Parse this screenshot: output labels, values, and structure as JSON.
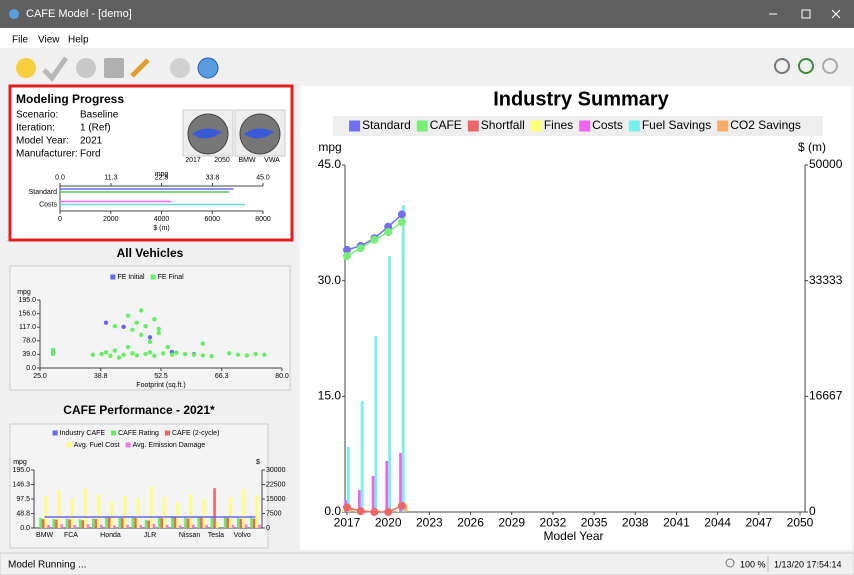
{
  "window": {
    "title": "CAFE Model - [demo]"
  },
  "menu": [
    "File",
    "View",
    "Help"
  ],
  "progress": {
    "title": "Modeling Progress",
    "rows": [
      [
        "Scenario:",
        "Baseline"
      ],
      [
        "Iteration:",
        "1 (Ref)"
      ],
      [
        "Model Year:",
        "2021"
      ],
      [
        "Manufacturer:",
        "Ford"
      ]
    ],
    "gauges": [
      [
        "2017",
        "2050"
      ],
      [
        "BMW",
        "VWA"
      ]
    ]
  },
  "status": {
    "message": "Model Running ...",
    "zoom": "100 %",
    "time": "1/13/20 17:54:14"
  },
  "chart_data": [
    {
      "type": "bar",
      "categories": [
        "Standard",
        "Costs"
      ],
      "xlabel": "mpg",
      "x2label": "$ (m)",
      "xlim": [
        0,
        45
      ],
      "xticks": [
        {
          "value": 0,
          "label": "0.0"
        },
        11.3,
        22.5,
        33.8,
        {
          "value": 45,
          "label": "45.0"
        }
      ],
      "x2lim": [
        0,
        8000
      ],
      "x2ticks": [
        0,
        2000,
        4000,
        6000,
        8000
      ],
      "series": [
        {
          "color": "#6b6bff",
          "values": [
            38.5,
            null
          ]
        },
        {
          "color": "#55cc55",
          "values": [
            37.5,
            null
          ]
        },
        {
          "color": "#ff66ff",
          "axis": "x2",
          "values": [
            null,
            4400
          ]
        },
        {
          "color": "#66dddd",
          "axis": "x2",
          "values": [
            null,
            7300
          ]
        }
      ]
    },
    {
      "type": "scatter",
      "title": "All Vehicles",
      "xlabel": "Footprint (sq.ft.)",
      "ylabel": "mpg",
      "xlim": [
        25,
        80
      ],
      "xticks": [
        {
          "value": 25,
          "label": "25.0"
        },
        38.8,
        52.5,
        66.3,
        {
          "value": 80,
          "label": "80.0"
        }
      ],
      "ylim": [
        0,
        195
      ],
      "yticks": [
        {
          "value": 0,
          "label": "0.0"
        },
        {
          "value": 39,
          "label": "39.0"
        },
        {
          "value": 78,
          "label": "78.0"
        },
        {
          "value": 117,
          "label": "117.0"
        },
        {
          "value": 156,
          "label": "156.0"
        },
        {
          "value": 195,
          "label": "195.0"
        }
      ],
      "series": [
        {
          "name": "FE Initial",
          "color": "#6666ee",
          "x": [
            28,
            40,
            44,
            50,
            55,
            60
          ],
          "values": [
            44,
            130,
            118,
            88,
            46,
            40
          ]
        },
        {
          "name": "FE Final",
          "color": "#66ee66",
          "x": [
            28,
            28,
            37,
            39,
            40,
            41,
            42,
            42,
            43,
            44,
            45,
            45,
            46,
            46,
            47,
            47,
            48,
            48,
            49,
            49,
            50,
            50,
            51,
            51,
            52,
            53,
            54,
            55,
            56,
            58,
            60,
            62,
            64,
            68,
            70,
            72,
            74,
            76,
            62,
            52
          ],
          "values": [
            52,
            40,
            38,
            40,
            45,
            35,
            50,
            120,
            30,
            38,
            150,
            60,
            110,
            42,
            130,
            36,
            165,
            95,
            40,
            120,
            75,
            45,
            140,
            35,
            100,
            42,
            60,
            38,
            44,
            40,
            38,
            36,
            34,
            42,
            38,
            36,
            40,
            38,
            70,
            112
          ]
        }
      ]
    },
    {
      "type": "combo",
      "title": "CAFE Performance - 2021*",
      "ylabel": "mpg",
      "y2label": "$",
      "categories": [
        "BMW",
        null,
        "FCA",
        null,
        null,
        "Honda",
        null,
        null,
        "JLR",
        null,
        null,
        "Nissan",
        null,
        "Tesla",
        null,
        "Volvo",
        null
      ],
      "ylim": [
        0,
        195
      ],
      "yticks": [
        {
          "value": 0,
          "label": "0.0"
        },
        48.8,
        97.5,
        146.3,
        {
          "value": 195,
          "label": "195.0"
        }
      ],
      "y2lim": [
        0,
        30000
      ],
      "y2ticks": [
        0,
        7500,
        15000,
        22500,
        30000
      ],
      "series": [
        {
          "name": "Industry CAFE",
          "type": "line",
          "color": "#6666ee",
          "values": [
            36.9,
            36.9,
            36.9,
            36.9,
            36.9,
            36.9,
            36.9,
            36.9,
            36.9,
            36.9,
            36.9,
            36.9,
            36.9,
            36.9,
            36.9,
            36.9,
            36.9
          ]
        },
        {
          "name": "CAFE Rating",
          "type": "bar",
          "color": "#66ee66",
          "values": [
            34,
            30,
            31,
            29,
            32,
            38,
            35,
            37,
            27,
            36,
            40,
            35,
            38,
            36,
            36,
            33,
            34
          ]
        },
        {
          "name": "CAFE (2-cycle)",
          "type": "bar",
          "color": "#ee6666",
          "values": [
            30,
            28,
            29,
            26,
            30,
            36,
            33,
            34,
            25,
            33,
            38,
            32,
            35,
            134,
            34,
            31,
            31
          ]
        },
        {
          "name": "Avg. Fuel Cost",
          "type": "bar",
          "axis": "y2",
          "color": "#ffff77",
          "values": [
            16500,
            19500,
            15000,
            20500,
            17500,
            14000,
            16500,
            15500,
            21500,
            16000,
            13500,
            17500,
            15000,
            3000,
            16000,
            20000,
            17000
          ]
        },
        {
          "name": "Avg. Emission Damage",
          "type": "bar",
          "axis": "y2",
          "color": "#ee77ee",
          "values": [
            1600,
            1900,
            1500,
            2000,
            1700,
            1300,
            1600,
            1500,
            2100,
            1600,
            1300,
            1700,
            1500,
            0,
            1600,
            1900,
            1700
          ]
        }
      ]
    },
    {
      "type": "combo",
      "title": "Industry Summary",
      "ylabel": "mpg",
      "y2label": "$ (m)",
      "xlabel": "Model Year",
      "x": [
        2017,
        2018,
        2019,
        2020,
        2021
      ],
      "xlim": [
        2017,
        2050
      ],
      "xticks": [
        2017,
        2020,
        2023,
        2026,
        2029,
        2032,
        2035,
        2038,
        2041,
        2044,
        2047,
        2050
      ],
      "ylim": [
        0,
        45
      ],
      "yticks": [
        {
          "value": 0,
          "label": "0.0"
        },
        {
          "value": 15,
          "label": "15.0"
        },
        {
          "value": 30,
          "label": "30.0"
        },
        {
          "value": 45,
          "label": "45.0"
        }
      ],
      "y2lim": [
        0,
        50000
      ],
      "y2ticks": [
        0,
        16667,
        33333,
        50000
      ],
      "series": [
        {
          "name": "Standard",
          "type": "line",
          "color": "#7070ee",
          "values": [
            34,
            34.5,
            35.5,
            37,
            38.6
          ]
        },
        {
          "name": "CAFE",
          "type": "line",
          "color": "#77ee77",
          "values": [
            33.2,
            34.2,
            35.3,
            36.3,
            37.6
          ]
        },
        {
          "name": "Shortfall",
          "type": "line",
          "color": "#ee6666",
          "values": [
            0.6,
            0.1,
            0,
            0,
            0.8
          ]
        },
        {
          "name": "Fines",
          "type": "bar",
          "axis": "y2",
          "color": "#ffff77",
          "values": [
            300,
            200,
            100,
            100,
            200
          ]
        },
        {
          "name": "Costs",
          "type": "bar",
          "axis": "y2",
          "color": "#ee66ee",
          "values": [
            1730,
            3170,
            5190,
            7350,
            8500
          ]
        },
        {
          "name": "Fuel Savings",
          "type": "bar",
          "axis": "y2",
          "color": "#77eeee",
          "values": [
            9370,
            16000,
            25360,
            36900,
            44240
          ]
        },
        {
          "name": "CO2 Savings",
          "type": "bar",
          "axis": "y2",
          "color": "#ffaa66",
          "values": [
            600,
            300,
            200,
            300,
            1000
          ]
        }
      ]
    }
  ]
}
